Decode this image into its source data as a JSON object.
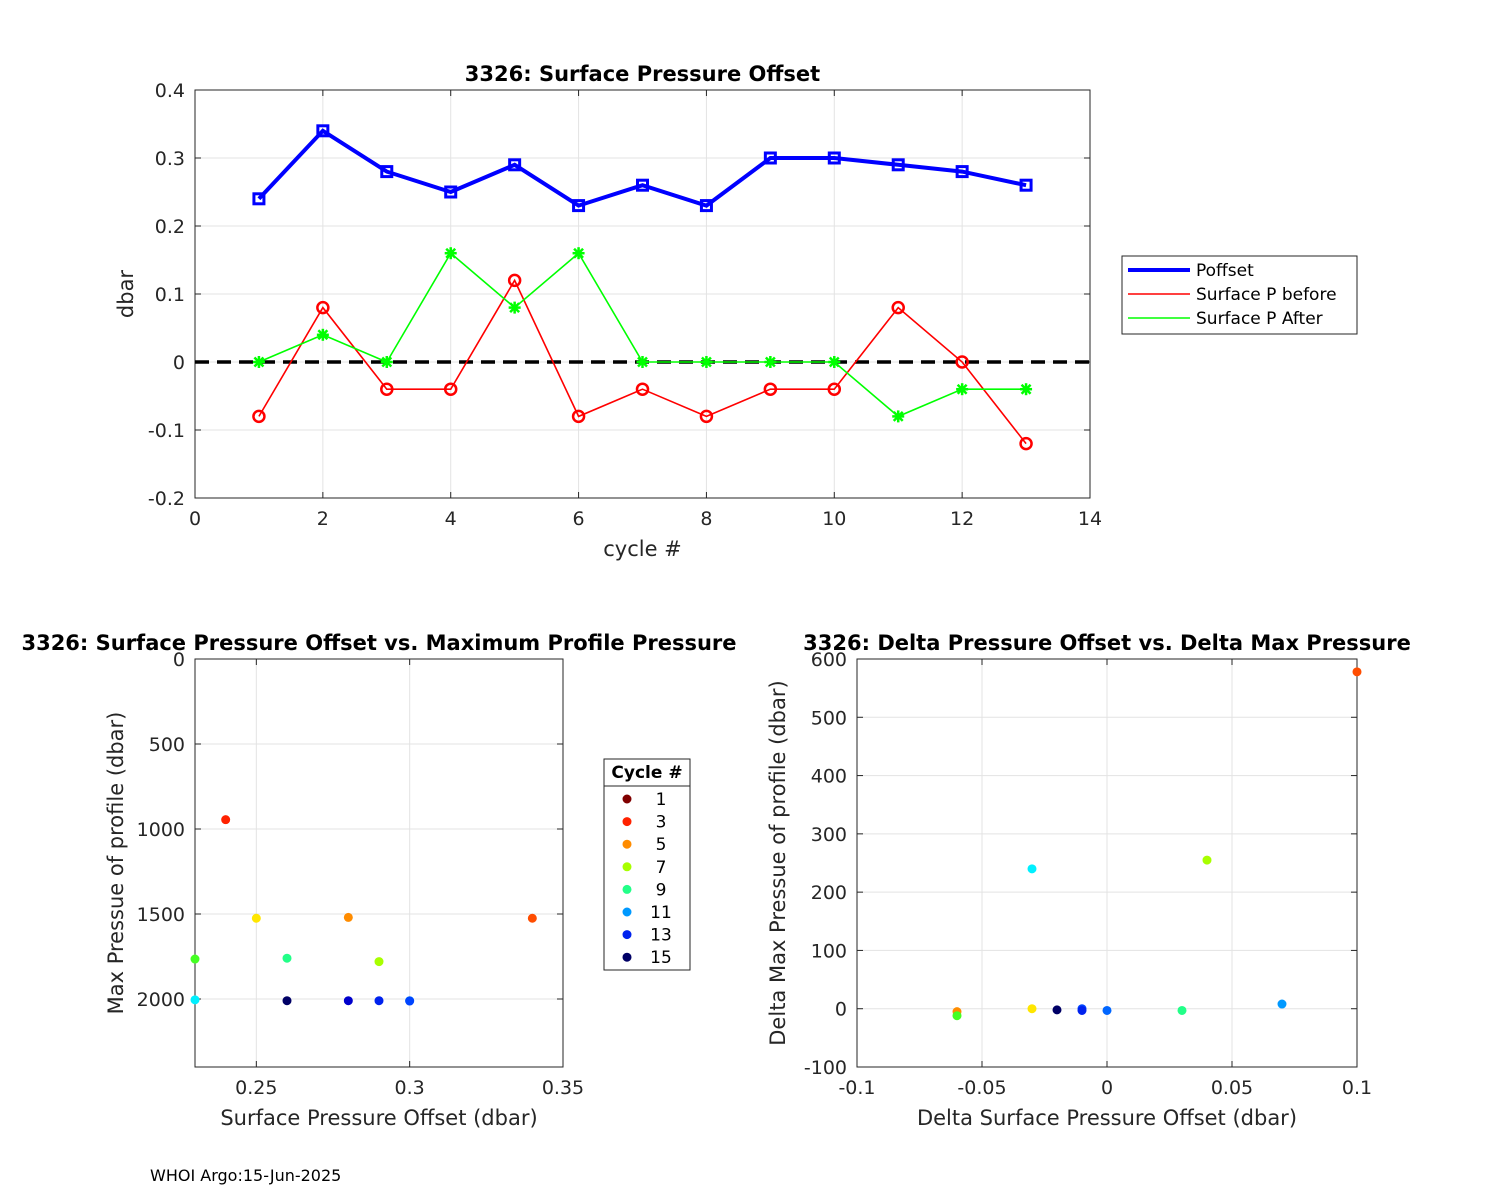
{
  "footer": "WHOI Argo:15-Jun-2025",
  "chart_data": [
    {
      "type": "line",
      "title": "3326: Surface Pressure Offset",
      "xlabel": "cycle #",
      "ylabel": "dbar",
      "xlim": [
        0,
        14
      ],
      "ylim": [
        -0.2,
        0.4
      ],
      "xticks": [
        0,
        2,
        4,
        6,
        8,
        10,
        12,
        14
      ],
      "yticks": [
        -0.2,
        -0.1,
        0,
        0.1,
        0.2,
        0.3,
        0.4
      ],
      "grid": true,
      "legend_position": "outside-right",
      "x": [
        1,
        2,
        3,
        4,
        5,
        6,
        7,
        8,
        9,
        10,
        11,
        12,
        13
      ],
      "series": [
        {
          "name": "Poffset",
          "color": "#0000ff",
          "marker": "square",
          "values": [
            0.24,
            0.34,
            0.28,
            0.25,
            0.29,
            0.23,
            0.26,
            0.23,
            0.3,
            0.3,
            0.29,
            0.28,
            0.26
          ]
        },
        {
          "name": "Surface P before",
          "color": "#ff0000",
          "marker": "circle",
          "values": [
            -0.08,
            0.08,
            -0.04,
            -0.04,
            0.12,
            -0.08,
            -0.04,
            -0.08,
            -0.04,
            -0.04,
            0.08,
            0.0,
            -0.12
          ]
        },
        {
          "name": "Surface P After",
          "color": "#00ff00",
          "marker": "asterisk",
          "values": [
            0.0,
            0.04,
            0.0,
            0.16,
            0.08,
            0.16,
            0.0,
            0.0,
            0.0,
            0.0,
            -0.08,
            -0.04,
            -0.04
          ]
        }
      ],
      "reference_line": {
        "y": 0,
        "style": "dashed",
        "color": "#000000"
      }
    },
    {
      "type": "scatter",
      "title": "3326: Surface Pressure Offset vs. Maximum Profile Pressure",
      "xlabel": "Surface Pressure Offset (dbar)",
      "ylabel": "Max Pressue of profile (dbar)",
      "xlim": [
        0.23,
        0.35
      ],
      "ylim": [
        0,
        2400
      ],
      "y_reversed": true,
      "xticks": [
        0.25,
        0.3,
        0.35
      ],
      "yticks": [
        0,
        500,
        1000,
        1500,
        2000
      ],
      "grid": true,
      "points": [
        {
          "cycle": 1,
          "x": 0.24,
          "y": 945,
          "color": "#ff2200"
        },
        {
          "cycle": 2,
          "x": 0.34,
          "y": 1525,
          "color": "#ff4d00"
        },
        {
          "cycle": 3,
          "x": 0.28,
          "y": 1520,
          "color": "#ff8c00"
        },
        {
          "cycle": 4,
          "x": 0.25,
          "y": 1525,
          "color": "#ffe600"
        },
        {
          "cycle": 5,
          "x": 0.29,
          "y": 1780,
          "color": "#a8ff00"
        },
        {
          "cycle": 6,
          "x": 0.23,
          "y": 1765,
          "color": "#44ff22"
        },
        {
          "cycle": 7,
          "x": 0.26,
          "y": 1760,
          "color": "#22ff88"
        },
        {
          "cycle": 8,
          "x": 0.23,
          "y": 2005,
          "color": "#00f0ff"
        },
        {
          "cycle": 9,
          "x": 0.3,
          "y": 2010,
          "color": "#0088ff"
        },
        {
          "cycle": 10,
          "x": 0.3,
          "y": 2012,
          "color": "#0044ff"
        },
        {
          "cycle": 11,
          "x": 0.29,
          "y": 2010,
          "color": "#0022ee"
        },
        {
          "cycle": 12,
          "x": 0.28,
          "y": 2010,
          "color": "#0000cc"
        },
        {
          "cycle": 13,
          "x": 0.26,
          "y": 2010,
          "color": "#000066"
        }
      ],
      "legend": {
        "title": "Cycle #",
        "position": "right",
        "entries": [
          {
            "label": "1",
            "color": "#800000"
          },
          {
            "label": "3",
            "color": "#ff2200"
          },
          {
            "label": "5",
            "color": "#ff8c00"
          },
          {
            "label": "7",
            "color": "#a8ff00"
          },
          {
            "label": "9",
            "color": "#22ff88"
          },
          {
            "label": "11",
            "color": "#0099ff"
          },
          {
            "label": "13",
            "color": "#0022ee"
          },
          {
            "label": "15",
            "color": "#000066"
          }
        ]
      }
    },
    {
      "type": "scatter",
      "title": "3326: Delta Pressure Offset vs. Delta Max Pressure",
      "xlabel": "Delta Surface Pressure Offset (dbar)",
      "ylabel": "Delta Max Pressue of profile (dbar)",
      "xlim": [
        -0.1,
        0.1
      ],
      "ylim": [
        -100,
        600
      ],
      "xticks": [
        -0.1,
        -0.05,
        0,
        0.05,
        0.1
      ],
      "yticks": [
        -100,
        0,
        100,
        200,
        300,
        400,
        500,
        600
      ],
      "grid": true,
      "points": [
        {
          "x": 0.1,
          "y": 578,
          "color": "#ff4d00"
        },
        {
          "x": -0.06,
          "y": -5,
          "color": "#ff8c00"
        },
        {
          "x": -0.03,
          "y": 0,
          "color": "#ffe600"
        },
        {
          "x": 0.04,
          "y": 255,
          "color": "#a8ff00"
        },
        {
          "x": -0.06,
          "y": -12,
          "color": "#44ff22"
        },
        {
          "x": -0.03,
          "y": 240,
          "color": "#00f0ff"
        },
        {
          "x": 0.03,
          "y": -3,
          "color": "#22ff88"
        },
        {
          "x": 0.07,
          "y": 8,
          "color": "#0099ff"
        },
        {
          "x": 0.0,
          "y": -3,
          "color": "#0066ff"
        },
        {
          "x": -0.01,
          "y": 0,
          "color": "#0044ff"
        },
        {
          "x": -0.01,
          "y": -3,
          "color": "#0022ee"
        },
        {
          "x": -0.02,
          "y": -2,
          "color": "#000066"
        }
      ]
    }
  ]
}
